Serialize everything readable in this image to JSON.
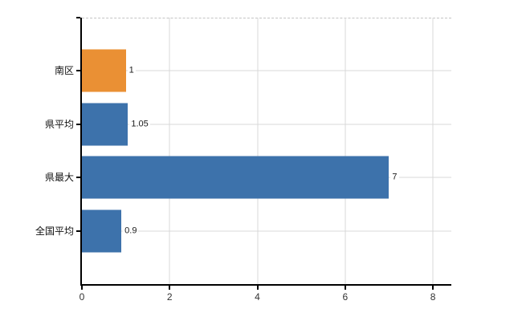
{
  "chart": {
    "background": "#ffffff",
    "axis_color": "#000000",
    "grid_color": "#d9d9d9",
    "top_grid_color": "#c4c4c4",
    "tick_label_color": "#333333",
    "category_label_color": "#111111",
    "value_label_color": "#1a1a1a"
  },
  "chart_data": {
    "type": "bar",
    "orientation": "horizontal",
    "title": "",
    "xlabel": "",
    "ylabel": "",
    "legend": false,
    "grid": true,
    "categories": [
      "南区",
      "県平均",
      "県最大",
      "全国平均"
    ],
    "values": [
      1,
      1.05,
      7,
      0.9
    ],
    "value_labels": [
      "1",
      "1.05",
      "7",
      "0.9"
    ],
    "bar_colors": [
      "#ea9034",
      "#3d72ab",
      "#3d72ab",
      "#3d72ab"
    ],
    "xlim": [
      0,
      8.42
    ],
    "x_ticks": [
      0,
      2,
      4,
      6,
      8
    ],
    "x_tick_labels": [
      "0",
      "2",
      "4",
      "6",
      "8"
    ]
  }
}
